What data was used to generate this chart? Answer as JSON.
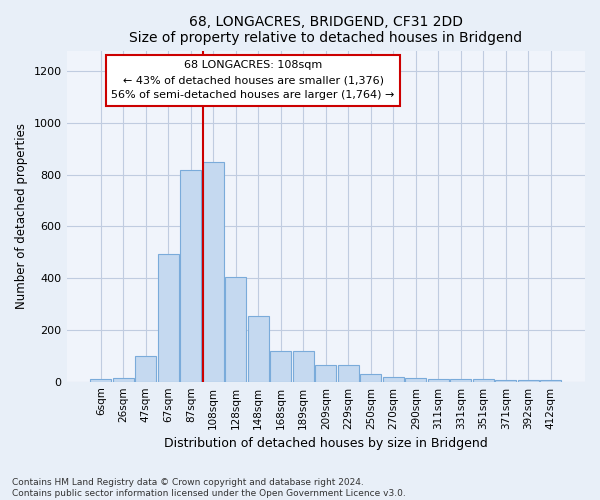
{
  "title": "68, LONGACRES, BRIDGEND, CF31 2DD",
  "subtitle": "Size of property relative to detached houses in Bridgend",
  "xlabel": "Distribution of detached houses by size in Bridgend",
  "ylabel": "Number of detached properties",
  "categories": [
    "6sqm",
    "26sqm",
    "47sqm",
    "67sqm",
    "87sqm",
    "108sqm",
    "128sqm",
    "148sqm",
    "168sqm",
    "189sqm",
    "209sqm",
    "229sqm",
    "250sqm",
    "270sqm",
    "290sqm",
    "311sqm",
    "331sqm",
    "351sqm",
    "371sqm",
    "392sqm",
    "412sqm"
  ],
  "bar_heights": [
    10,
    15,
    100,
    495,
    820,
    850,
    405,
    255,
    120,
    120,
    65,
    65,
    30,
    20,
    15,
    12,
    12,
    10,
    5,
    8,
    5
  ],
  "bar_color": "#c5d9f0",
  "bar_edge_color": "#7aabda",
  "vline_index": 5,
  "vline_color": "#cc0000",
  "annotation_text_line1": "68 LONGACRES: 108sqm",
  "annotation_text_line2": "← 43% of detached houses are smaller (1,376)",
  "annotation_text_line3": "56% of semi-detached houses are larger (1,764) →",
  "ylim": [
    0,
    1280
  ],
  "yticks": [
    0,
    200,
    400,
    600,
    800,
    1000,
    1200
  ],
  "footer": "Contains HM Land Registry data © Crown copyright and database right 2024.\nContains public sector information licensed under the Open Government Licence v3.0.",
  "background_color": "#e8eff8",
  "plot_bg_color": "#f0f4fb",
  "grid_color": "#c0cce0"
}
